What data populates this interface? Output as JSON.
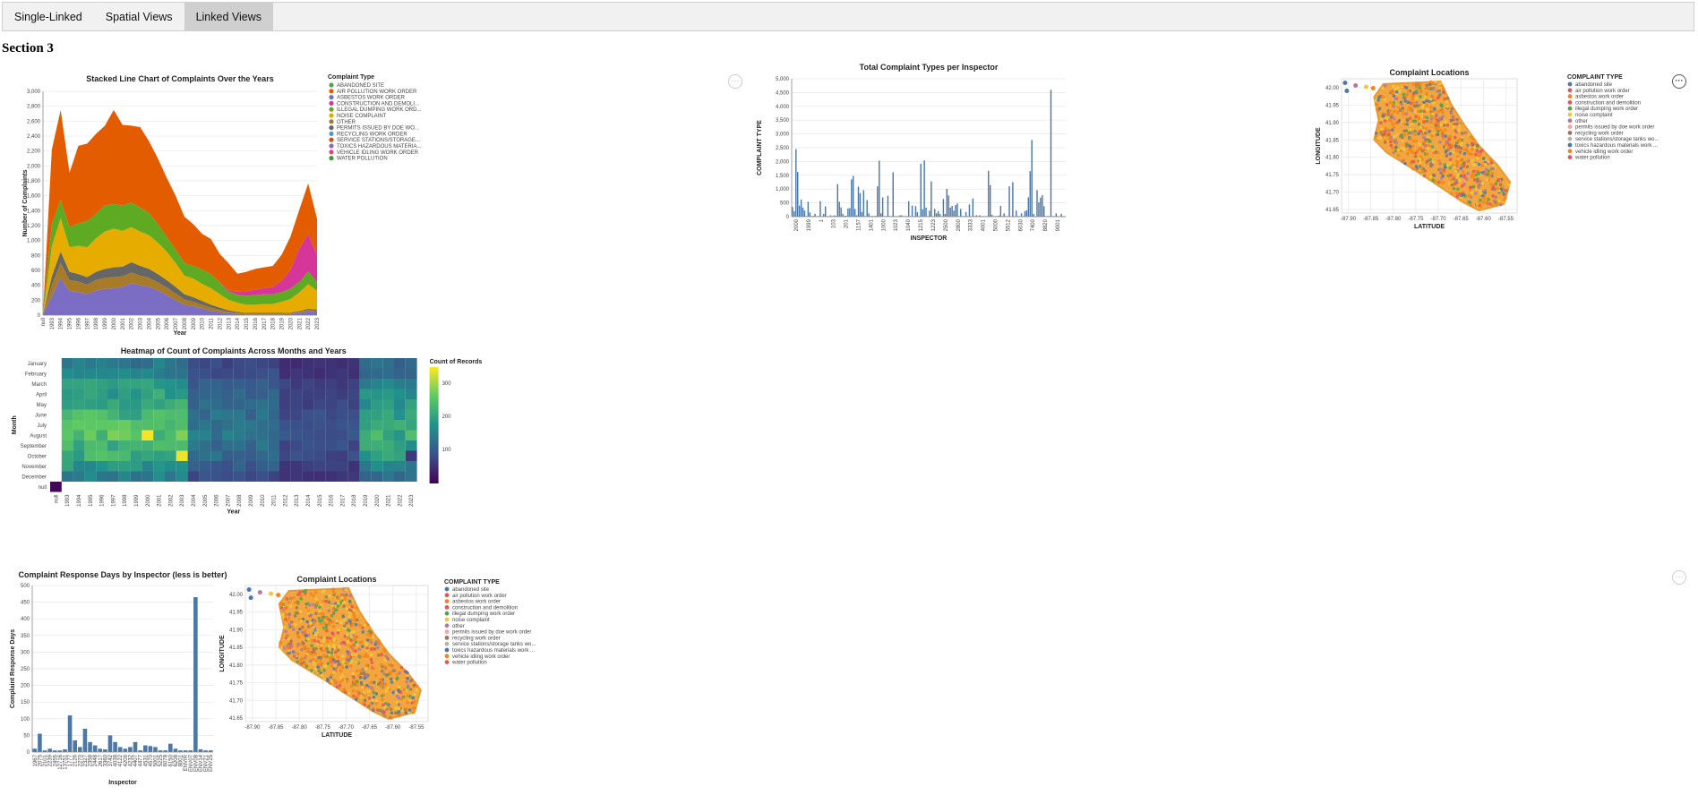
{
  "tabs": [
    {
      "label": "Single-Linked"
    },
    {
      "label": "Spatial Views"
    },
    {
      "label": "Linked Views",
      "active": true
    }
  ],
  "section_title": "Section 3",
  "menus": {
    "glyph": "···"
  },
  "colors": {
    "bar": "#4c78a8",
    "types": [
      "#4c78a8",
      "#e45756",
      "#f58518",
      "#e45756",
      "#54a24b",
      "#eeca3b",
      "#b279a2",
      "#ff9da6",
      "#9d755d",
      "#bab0ac",
      "#4c78a8",
      "#f58518",
      "#e45756"
    ],
    "stack": [
      "#54a24b",
      "#e45c00",
      "#7b6cc4",
      "#d6359a",
      "#5eaa22",
      "#e6ac00",
      "#a87b28",
      "#666666",
      "#4c9ad5",
      "#c8521d",
      "#8b68c4",
      "#e83e7a",
      "#3d9b3d"
    ]
  },
  "legend_types": [
    "abandoned site",
    "air pollution work order",
    "asbestos work order",
    "construction and demolition",
    "illegal dumping work order",
    "noise complaint",
    "other",
    "permits issued by doe work order",
    "recycling work order",
    "service stations/storage tanks wo...",
    "toxics hazardous materials work ...",
    "vehicle idling work order",
    "water pollution"
  ],
  "chart_data": [
    {
      "id": "stacked",
      "type": "area",
      "title": "Stacked Line Chart of Complaints Over the Years",
      "xlabel": "Year",
      "ylabel": "Number of Complaints",
      "ylim": [
        0,
        3000
      ],
      "yticks": [
        "0",
        "200",
        "400",
        "600",
        "800",
        "1,000",
        "1,200",
        "1,400",
        "1,600",
        "1,800",
        "2,000",
        "2,200",
        "2,400",
        "2,600",
        "2,800",
        "3,000"
      ],
      "categories": [
        "null",
        "1993",
        "1994",
        "1995",
        "1996",
        "1997",
        "1998",
        "1999",
        "2000",
        "2001",
        "2002",
        "2003",
        "2004",
        "2005",
        "2006",
        "2007",
        "2008",
        "2009",
        "2010",
        "2011",
        "2012",
        "2013",
        "2014",
        "2015",
        "2016",
        "2017",
        "2018",
        "2019",
        "2020",
        "2021",
        "2022",
        "2023"
      ],
      "legend_title": "Complaint Type",
      "legend": [
        "ABANDONED SITE",
        "AIR POLLUTION WORK ORDER",
        "ASBESTOS WORK ORDER",
        "CONSTRUCTION AND DEMOLI...",
        "ILLEGAL DUMPING WORK ORD...",
        "NOISE COMPLAINT",
        "OTHER",
        "PERMITS ISSUED BY DOE WO...",
        "RECYCLING WORK ORDER",
        "SERVICE STATIONS/STORAGE...",
        "TOXICS HAZARDOUS MATERIA...",
        "VEHICLE IDLING WORK ORDER",
        "WATER POLLUTION"
      ],
      "series": [
        {
          "name": "ASBESTOS WORK ORDER",
          "values": [
            5,
            250,
            500,
            320,
            310,
            280,
            330,
            350,
            360,
            380,
            430,
            400,
            380,
            330,
            270,
            200,
            140,
            120,
            90,
            60,
            40,
            25,
            15,
            10,
            10,
            10,
            10,
            10,
            15,
            30,
            50,
            40
          ]
        },
        {
          "name": "OTHER",
          "values": [
            3,
            150,
            200,
            150,
            140,
            130,
            140,
            150,
            150,
            140,
            140,
            130,
            120,
            110,
            100,
            90,
            70,
            60,
            50,
            40,
            30,
            20,
            15,
            10,
            10,
            10,
            10,
            10,
            10,
            15,
            20,
            20
          ]
        },
        {
          "name": "PERMITS ISSUED BY DOE WORK ORDER",
          "values": [
            2,
            120,
            150,
            110,
            100,
            100,
            110,
            120,
            130,
            130,
            140,
            130,
            120,
            110,
            100,
            90,
            70,
            60,
            50,
            40,
            30,
            20,
            15,
            10,
            10,
            10,
            10,
            10,
            10,
            10,
            15,
            15
          ]
        },
        {
          "name": "NOISE COMPLAINT",
          "values": [
            3,
            400,
            450,
            330,
            380,
            400,
            450,
            500,
            520,
            480,
            470,
            460,
            450,
            420,
            380,
            320,
            250,
            250,
            230,
            220,
            180,
            140,
            120,
            110,
            110,
            120,
            120,
            150,
            180,
            250,
            330,
            250
          ]
        },
        {
          "name": "ILLEGAL DUMPING WORK ORDER",
          "values": [
            2,
            300,
            250,
            270,
            300,
            350,
            330,
            350,
            330,
            340,
            330,
            320,
            300,
            250,
            200,
            180,
            170,
            170,
            190,
            190,
            160,
            110,
            110,
            120,
            130,
            130,
            130,
            130,
            140,
            140,
            170,
            120
          ]
        },
        {
          "name": "VEHICLE IDLING WORK ORDER",
          "values": [
            0,
            0,
            0,
            0,
            0,
            0,
            0,
            0,
            0,
            0,
            0,
            0,
            0,
            0,
            0,
            0,
            0,
            0,
            0,
            0,
            0,
            20,
            40,
            60,
            70,
            80,
            100,
            150,
            250,
            450,
            500,
            350
          ]
        },
        {
          "name": "AIR POLLUTION WORK ORDER",
          "values": [
            5,
            1000,
            1200,
            730,
            1040,
            1040,
            1070,
            1070,
            1260,
            1080,
            1030,
            1080,
            960,
            880,
            790,
            720,
            620,
            560,
            480,
            470,
            380,
            360,
            240,
            260,
            280,
            280,
            280,
            350,
            450,
            520,
            680,
            500
          ]
        }
      ]
    },
    {
      "id": "inspector",
      "type": "bar",
      "title": "Total Complaint Types per Inspector",
      "xlabel": "INSPECTOR",
      "ylabel": "COMPLAINT TYPE",
      "ylim": [
        0,
        5000
      ],
      "yticks": [
        "0",
        "500",
        "1,000",
        "1,500",
        "2,000",
        "2,500",
        "3,000",
        "3,500",
        "4,000",
        "4,500",
        "5,000"
      ],
      "values": [
        350,
        200,
        2450,
        1620,
        400,
        620,
        330,
        220,
        20,
        540,
        150,
        20,
        30,
        100,
        20,
        20,
        560,
        20,
        100,
        370,
        20,
        20,
        50,
        20,
        50,
        30,
        1180,
        540,
        340,
        100,
        30,
        30,
        300,
        310,
        1350,
        1480,
        280,
        50,
        1090,
        850,
        170,
        960,
        20,
        600,
        120,
        20,
        30,
        20,
        30,
        1100,
        2030,
        120,
        700,
        20,
        20,
        760,
        20,
        20,
        1610,
        20,
        20,
        20,
        50,
        50,
        20,
        20,
        20,
        560,
        20,
        400,
        20,
        380,
        160,
        20,
        1920,
        270,
        2040,
        330,
        20,
        220,
        1280,
        20,
        280,
        120,
        200,
        100,
        20,
        640,
        100,
        1010,
        770,
        330,
        390,
        220,
        420,
        480,
        20,
        280,
        20,
        20,
        170,
        20,
        440,
        20,
        660,
        20,
        50,
        20,
        50,
        20,
        20,
        20,
        20,
        1660,
        1140,
        70,
        20,
        20,
        20,
        40,
        390,
        20,
        120,
        20,
        20,
        1100,
        20,
        1250,
        20,
        220,
        20,
        20,
        120,
        20,
        200,
        230,
        700,
        1650,
        2780,
        100,
        20,
        960,
        520,
        690,
        780,
        380,
        20,
        20,
        20,
        4600,
        20,
        20,
        120,
        20,
        20,
        100,
        20,
        20
      ],
      "xticks_sample": [
        "2000",
        "1999",
        "1",
        "103",
        "201",
        "1157",
        "1401",
        "1000",
        "1023",
        "1040",
        "1215",
        "1223",
        "2500",
        "2800",
        "3333",
        "4001",
        "5000",
        "5512",
        "6030",
        "7400",
        "8820",
        "9001"
      ]
    },
    {
      "id": "heatmap",
      "type": "heatmap",
      "title": "Heatmap of Count of Complaints Across Months and Years",
      "xlabel": "Year",
      "ylabel": "Month",
      "rows": [
        "January",
        "February",
        "March",
        "April",
        "May",
        "June",
        "July",
        "August",
        "September",
        "October",
        "November",
        "December",
        "null"
      ],
      "cols": [
        "null",
        "1993",
        "1994",
        "1995",
        "1996",
        "1997",
        "1998",
        "1999",
        "2000",
        "2001",
        "2002",
        "2003",
        "2004",
        "2005",
        "2006",
        "2007",
        "2008",
        "2009",
        "2010",
        "2011",
        "2012",
        "2013",
        "2014",
        "2015",
        "2016",
        "2017",
        "2018",
        "2019",
        "2020",
        "2021",
        "2022",
        "2023"
      ],
      "legend_title": "Count of Records",
      "legend_ticks": [
        "300",
        "200",
        "100"
      ],
      "vmax": 350
    },
    {
      "id": "response",
      "type": "bar",
      "title": "Complaint Response Days by Inspector (less is better)",
      "xlabel": "Inspector",
      "ylabel": "Complaint Response Days",
      "ylim": [
        0,
        500
      ],
      "yticks": [
        "0",
        "50",
        "100",
        "150",
        "200",
        "250",
        "300",
        "350",
        "400",
        "450",
        "500"
      ],
      "values": [
        10,
        55,
        5,
        10,
        5,
        5,
        8,
        110,
        35,
        15,
        70,
        30,
        20,
        10,
        8,
        50,
        30,
        15,
        10,
        15,
        30,
        5,
        20,
        18,
        15,
        5,
        5,
        25,
        10,
        5,
        5,
        5,
        465,
        8,
        5,
        5
      ],
      "xticks": [
        "1967",
        "2075",
        "2101",
        "2239",
        "2455",
        "12716",
        "13751",
        "1777",
        "2126",
        "2270",
        "2327",
        "2358",
        "2448",
        "2617",
        "3360",
        "3742",
        "4038",
        "4122",
        "4209",
        "4232",
        "4407",
        "4477",
        "4531",
        "4570",
        "5001",
        "5225",
        "6078",
        "6150",
        "6208",
        "8001",
        "ENVIR",
        "ENV07",
        "ENV08",
        "ENV14",
        "ENV21",
        "ENV25"
      ]
    },
    {
      "id": "map1",
      "type": "scatter",
      "title": "Complaint Locations",
      "xlabel": "LATITUDE",
      "ylabel": "LONGITUDE",
      "xticks": [
        "-87.90",
        "-87.85",
        "-87.80",
        "-87.75",
        "-87.70",
        "-87.65",
        "-87.60",
        "-87.55"
      ],
      "yticks": [
        "42.00",
        "41.95",
        "41.90",
        "41.85",
        "41.80",
        "41.75",
        "41.70",
        "41.65"
      ],
      "legend_title": "COMPLAINT TYPE"
    },
    {
      "id": "map2",
      "type": "scatter",
      "title": "Complaint Locations",
      "xlabel": "LATITUDE",
      "ylabel": "LONGITUDE",
      "xticks": [
        "-87.90",
        "-87.85",
        "-87.80",
        "-87.75",
        "-87.70",
        "-87.65",
        "-87.60",
        "-87.55"
      ],
      "yticks": [
        "42.00",
        "41.95",
        "41.90",
        "41.85",
        "41.80",
        "41.75",
        "41.70",
        "41.65"
      ],
      "legend_title": "COMPLAINT TYPE"
    }
  ]
}
